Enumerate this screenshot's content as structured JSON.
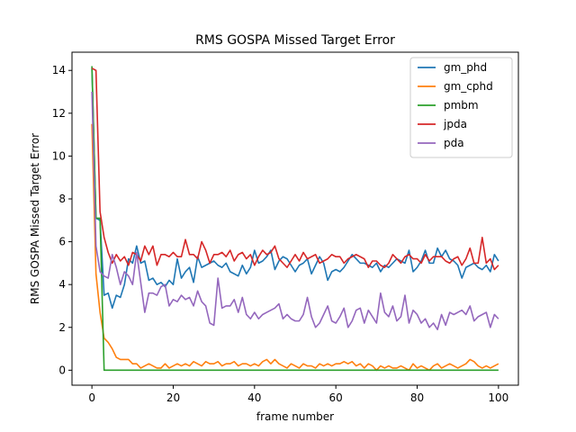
{
  "chart_data": {
    "type": "line",
    "title": "RMS GOSPA Missed Target Error",
    "xlabel": "frame number",
    "ylabel": "RMS GOSPA Missed Target Error",
    "xlim": [
      -4.9,
      104.9
    ],
    "ylim": [
      -0.7,
      14.85
    ],
    "xticks": [
      0,
      20,
      40,
      60,
      80,
      100
    ],
    "yticks": [
      0,
      2,
      4,
      6,
      8,
      10,
      12,
      14
    ],
    "grid": false,
    "legend_position": "top-right",
    "series": [
      {
        "name": "gm_phd",
        "color": "#1f77b4",
        "values": [
          14.1,
          7.1,
          7.0,
          3.5,
          3.6,
          2.9,
          3.5,
          3.4,
          4.0,
          5.2,
          5.0,
          5.8,
          5.0,
          5.1,
          4.2,
          4.3,
          4.0,
          4.1,
          3.9,
          4.2,
          4.0,
          5.2,
          4.3,
          4.6,
          4.8,
          4.1,
          5.3,
          4.8,
          4.9,
          5.0,
          5.1,
          4.9,
          4.8,
          5.0,
          4.6,
          4.5,
          4.4,
          4.9,
          4.5,
          4.8,
          5.6,
          5.0,
          5.1,
          5.3,
          5.6,
          4.7,
          5.1,
          5.3,
          5.2,
          4.9,
          4.6,
          4.9,
          5.0,
          5.2,
          4.5,
          4.9,
          5.3,
          5.0,
          4.2,
          4.6,
          4.7,
          4.6,
          4.8,
          5.1,
          5.4,
          5.2,
          5.0,
          5.0,
          4.9,
          4.8,
          5.0,
          4.6,
          4.9,
          4.8,
          5.0,
          5.2,
          5.1,
          5.0,
          5.6,
          4.6,
          4.8,
          5.1,
          5.6,
          5.0,
          5.0,
          5.7,
          5.3,
          5.6,
          5.2,
          5.1,
          4.9,
          4.3,
          4.8,
          4.9,
          5.0,
          4.8,
          4.7,
          4.9,
          4.6,
          5.4,
          5.1
        ]
      },
      {
        "name": "gm_cphd",
        "color": "#ff7f0e",
        "values": [
          11.5,
          4.5,
          2.7,
          1.5,
          1.3,
          1.0,
          0.6,
          0.5,
          0.5,
          0.5,
          0.3,
          0.3,
          0.1,
          0.2,
          0.3,
          0.2,
          0.1,
          0.1,
          0.3,
          0.1,
          0.2,
          0.3,
          0.2,
          0.3,
          0.2,
          0.4,
          0.3,
          0.2,
          0.4,
          0.3,
          0.3,
          0.4,
          0.2,
          0.3,
          0.3,
          0.4,
          0.2,
          0.3,
          0.3,
          0.2,
          0.3,
          0.2,
          0.4,
          0.5,
          0.3,
          0.5,
          0.3,
          0.2,
          0.1,
          0.3,
          0.2,
          0.1,
          0.3,
          0.2,
          0.2,
          0.1,
          0.3,
          0.2,
          0.3,
          0.2,
          0.3,
          0.3,
          0.4,
          0.3,
          0.4,
          0.2,
          0.3,
          0.1,
          0.3,
          0.2,
          0.0,
          0.2,
          0.1,
          0.2,
          0.1,
          0.1,
          0.2,
          0.1,
          0.0,
          0.3,
          0.1,
          0.2,
          0.1,
          0.0,
          0.2,
          0.3,
          0.1,
          0.2,
          0.3,
          0.2,
          0.1,
          0.2,
          0.3,
          0.5,
          0.4,
          0.2,
          0.1,
          0.2,
          0.1,
          0.2,
          0.3
        ]
      },
      {
        "name": "pmbm",
        "color": "#2ca02c",
        "values": [
          14.2,
          7.1,
          7.1,
          0.0,
          0.0,
          0.0,
          0.0,
          0.0,
          0.0,
          0.0,
          0.0,
          0.0,
          0.0,
          0.0,
          0.0,
          0.0,
          0.0,
          0.0,
          0.0,
          0.0,
          0.0,
          0.0,
          0.0,
          0.0,
          0.0,
          0.0,
          0.0,
          0.0,
          0.0,
          0.0,
          0.0,
          0.0,
          0.0,
          0.0,
          0.0,
          0.0,
          0.0,
          0.0,
          0.0,
          0.0,
          0.0,
          0.0,
          0.0,
          0.0,
          0.0,
          0.0,
          0.0,
          0.0,
          0.0,
          0.0,
          0.0,
          0.0,
          0.0,
          0.0,
          0.0,
          0.0,
          0.0,
          0.0,
          0.0,
          0.0,
          0.0,
          0.0,
          0.0,
          0.0,
          0.0,
          0.0,
          0.0,
          0.0,
          0.0,
          0.0,
          0.0,
          0.0,
          0.0,
          0.0,
          0.0,
          0.0,
          0.0,
          0.0,
          0.0,
          0.0,
          0.0,
          0.0,
          0.0,
          0.0,
          0.0,
          0.0,
          0.0,
          0.0,
          0.0,
          0.0,
          0.0,
          0.0,
          0.0,
          0.0,
          0.0,
          0.0,
          0.0,
          0.0,
          0.0,
          0.0,
          0.0
        ]
      },
      {
        "name": "jpda",
        "color": "#d62728",
        "values": [
          14.1,
          14.0,
          7.4,
          6.2,
          5.5,
          5.0,
          5.4,
          5.1,
          5.3,
          4.9,
          5.5,
          5.4,
          5.1,
          5.8,
          5.4,
          5.8,
          4.9,
          5.4,
          5.4,
          5.3,
          5.5,
          5.3,
          5.3,
          6.1,
          5.4,
          5.4,
          5.2,
          6.0,
          5.6,
          5.0,
          5.4,
          5.4,
          5.5,
          5.3,
          5.6,
          5.1,
          5.4,
          5.5,
          5.2,
          5.4,
          4.9,
          5.3,
          5.6,
          5.4,
          5.5,
          5.8,
          5.2,
          5.0,
          4.8,
          5.1,
          5.4,
          5.1,
          5.5,
          5.2,
          5.3,
          5.4,
          5.0,
          5.1,
          5.2,
          5.4,
          5.3,
          5.3,
          5.0,
          5.2,
          5.3,
          5.4,
          5.3,
          5.2,
          4.8,
          5.1,
          5.1,
          4.9,
          4.8,
          5.0,
          5.4,
          5.2,
          5.0,
          5.3,
          5.4,
          5.2,
          5.2,
          5.0,
          5.4,
          5.1,
          5.3,
          5.3,
          5.3,
          5.1,
          5.0,
          5.2,
          5.3,
          4.9,
          5.2,
          5.7,
          5.0,
          5.0,
          6.2,
          5.0,
          5.2,
          4.7,
          4.9
        ]
      },
      {
        "name": "pda",
        "color": "#9467bd",
        "values": [
          13.0,
          5.8,
          4.6,
          4.4,
          4.3,
          5.4,
          4.8,
          4.0,
          4.6,
          4.4,
          4.0,
          5.5,
          4.1,
          2.7,
          3.6,
          3.6,
          3.5,
          3.9,
          4.0,
          3.0,
          3.3,
          3.2,
          3.5,
          3.3,
          3.4,
          3.0,
          3.7,
          3.2,
          3.0,
          2.2,
          2.1,
          4.3,
          2.9,
          3.0,
          3.0,
          3.3,
          2.7,
          3.4,
          2.6,
          2.4,
          2.7,
          2.4,
          2.6,
          2.7,
          2.8,
          2.9,
          3.1,
          2.4,
          2.6,
          2.4,
          2.3,
          2.3,
          2.6,
          3.4,
          2.5,
          2.0,
          2.2,
          2.6,
          3.0,
          2.3,
          2.2,
          2.5,
          2.9,
          2.0,
          2.3,
          2.8,
          2.9,
          2.2,
          2.8,
          2.5,
          2.2,
          3.6,
          2.7,
          2.5,
          3.0,
          2.3,
          2.5,
          3.5,
          2.2,
          2.8,
          2.6,
          2.2,
          2.4,
          2.0,
          2.2,
          1.9,
          2.6,
          2.1,
          2.7,
          2.6,
          2.7,
          2.8,
          2.6,
          3.0,
          2.3,
          2.5,
          2.6,
          2.7,
          2.0,
          2.6,
          2.4
        ]
      }
    ]
  }
}
